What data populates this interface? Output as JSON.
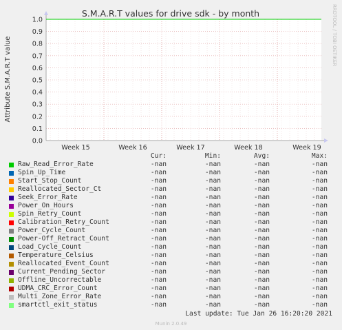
{
  "chart_data": {
    "type": "line",
    "title": "S.M.A.R.T values for drive sdk - by month",
    "ylabel": "Attribute S.M.A.R.T value",
    "xlabel": "",
    "side_label": "RRDTOOL / TOBI OETIKER",
    "ylim": [
      0.0,
      1.0
    ],
    "yticks": [
      "0.0",
      "0.1",
      "0.2",
      "0.3",
      "0.4",
      "0.5",
      "0.6",
      "0.7",
      "0.8",
      "0.9",
      "1.0"
    ],
    "xticks": [
      "Week 15",
      "Week 16",
      "Week 17",
      "Week 18",
      "Week 19"
    ],
    "grid": true,
    "reference_line": 1.0,
    "reference_color": "#00cc00",
    "grid_color": "#e0a0a0"
  },
  "legend": {
    "headers": {
      "cur": "Cur:",
      "min": "Min:",
      "avg": "Avg:",
      "max": "Max:"
    },
    "series": [
      {
        "name": "Raw_Read_Error_Rate",
        "color": "#00cc00",
        "cur": "-nan",
        "min": "-nan",
        "avg": "-nan",
        "max": "-nan"
      },
      {
        "name": "Spin_Up_Time",
        "color": "#0066b3",
        "cur": "-nan",
        "min": "-nan",
        "avg": "-nan",
        "max": "-nan"
      },
      {
        "name": "Start_Stop_Count",
        "color": "#ff8000",
        "cur": "-nan",
        "min": "-nan",
        "avg": "-nan",
        "max": "-nan"
      },
      {
        "name": "Reallocated_Sector_Ct",
        "color": "#ffcc00",
        "cur": "-nan",
        "min": "-nan",
        "avg": "-nan",
        "max": "-nan"
      },
      {
        "name": "Seek_Error_Rate",
        "color": "#330099",
        "cur": "-nan",
        "min": "-nan",
        "avg": "-nan",
        "max": "-nan"
      },
      {
        "name": "Power_On_Hours",
        "color": "#990099",
        "cur": "-nan",
        "min": "-nan",
        "avg": "-nan",
        "max": "-nan"
      },
      {
        "name": "Spin_Retry_Count",
        "color": "#ccff00",
        "cur": "-nan",
        "min": "-nan",
        "avg": "-nan",
        "max": "-nan"
      },
      {
        "name": "Calibration_Retry_Count",
        "color": "#ff0000",
        "cur": "-nan",
        "min": "-nan",
        "avg": "-nan",
        "max": "-nan"
      },
      {
        "name": "Power_Cycle_Count",
        "color": "#808080",
        "cur": "-nan",
        "min": "-nan",
        "avg": "-nan",
        "max": "-nan"
      },
      {
        "name": "Power-Off_Retract_Count",
        "color": "#008f00",
        "cur": "-nan",
        "min": "-nan",
        "avg": "-nan",
        "max": "-nan"
      },
      {
        "name": "Load_Cycle_Count",
        "color": "#00487d",
        "cur": "-nan",
        "min": "-nan",
        "avg": "-nan",
        "max": "-nan"
      },
      {
        "name": "Temperature_Celsius",
        "color": "#b35a00",
        "cur": "-nan",
        "min": "-nan",
        "avg": "-nan",
        "max": "-nan"
      },
      {
        "name": "Reallocated_Event_Count",
        "color": "#b38f00",
        "cur": "-nan",
        "min": "-nan",
        "avg": "-nan",
        "max": "-nan"
      },
      {
        "name": "Current_Pending_Sector",
        "color": "#6b006b",
        "cur": "-nan",
        "min": "-nan",
        "avg": "-nan",
        "max": "-nan"
      },
      {
        "name": "Offline_Uncorrectable",
        "color": "#8fb300",
        "cur": "-nan",
        "min": "-nan",
        "avg": "-nan",
        "max": "-nan"
      },
      {
        "name": "UDMA_CRC_Error_Count",
        "color": "#b30000",
        "cur": "-nan",
        "min": "-nan",
        "avg": "-nan",
        "max": "-nan"
      },
      {
        "name": "Multi_Zone_Error_Rate",
        "color": "#bebebe",
        "cur": "-nan",
        "min": "-nan",
        "avg": "-nan",
        "max": "-nan"
      },
      {
        "name": "smartctl_exit_status",
        "color": "#80ff80",
        "cur": "-nan",
        "min": "-nan",
        "avg": "-nan",
        "max": "-nan"
      }
    ]
  },
  "footer": {
    "last_update": "Last update: Tue Jan 26 16:20:20 2021",
    "munin": "Munin 2.0.49"
  }
}
